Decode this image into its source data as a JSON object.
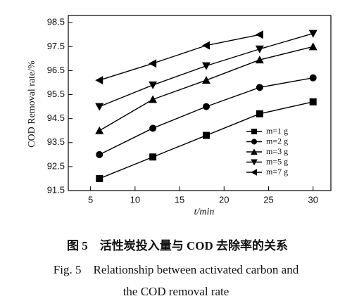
{
  "chart_data": {
    "type": "line",
    "x": [
      6,
      12,
      18,
      24,
      30
    ],
    "series": [
      {
        "name": "m=1 g",
        "color": "#000000",
        "marker": "square",
        "values": [
          92.0,
          92.9,
          93.8,
          94.7,
          95.2
        ]
      },
      {
        "name": "m=2 g",
        "color": "#000000",
        "marker": "circle",
        "values": [
          93.0,
          94.1,
          95.0,
          95.8,
          96.2
        ]
      },
      {
        "name": "m=3 g",
        "color": "#000000",
        "marker": "triangle-up",
        "values": [
          94.0,
          95.3,
          96.1,
          96.95,
          97.5
        ]
      },
      {
        "name": "m=5 g",
        "color": "#000000",
        "marker": "triangle-down",
        "values": [
          95.0,
          95.9,
          96.7,
          97.4,
          98.05
        ]
      },
      {
        "name": "m=7 g",
        "color": "#000000",
        "marker": "triangle-left",
        "values": [
          96.1,
          96.8,
          97.55,
          98.0,
          null
        ]
      }
    ],
    "xlabel": "t/min",
    "ylabel": "COD Removal rate/%",
    "xlim": [
      2.5,
      32
    ],
    "ylim": [
      91.5,
      98.8
    ],
    "xticks": [
      5,
      10,
      15,
      20,
      25,
      30
    ],
    "yticks": [
      91.5,
      92.5,
      93.5,
      94.5,
      95.5,
      96.5,
      97.5,
      98.5
    ],
    "legend": "lower-right",
    "caption": [
      "图 5　活性炭投入量与 COD 去除率的关系",
      "Fig. 5　Relationship between activated carbon and",
      "the COD removal rate"
    ]
  }
}
